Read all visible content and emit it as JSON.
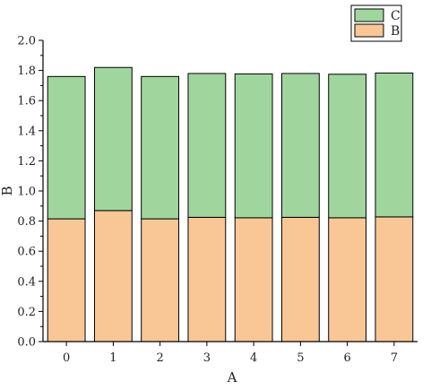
{
  "chart_data": {
    "type": "bar",
    "stacked": true,
    "categories": [
      "0",
      "1",
      "2",
      "3",
      "4",
      "5",
      "6",
      "7"
    ],
    "series": [
      {
        "name": "B",
        "color": "#f9c796",
        "values": [
          0.815,
          0.87,
          0.815,
          0.825,
          0.822,
          0.825,
          0.822,
          0.828
        ]
      },
      {
        "name": "C",
        "color": "#a0d69e",
        "values": [
          0.945,
          0.95,
          0.945,
          0.955,
          0.955,
          0.955,
          0.953,
          0.955
        ]
      }
    ],
    "xlabel": "A",
    "ylabel": "B",
    "ylim": [
      0,
      2.0
    ],
    "yticks": [
      "0.0",
      "0.2",
      "0.4",
      "0.6",
      "0.8",
      "1.0",
      "1.2",
      "1.4",
      "1.6",
      "1.8",
      "2.0"
    ],
    "grid": false,
    "legend_position": "top-right"
  }
}
